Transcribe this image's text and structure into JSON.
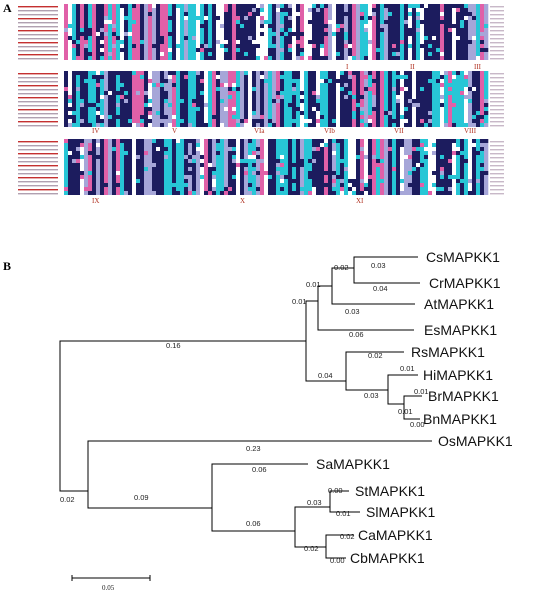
{
  "panels": {
    "a_label": "A",
    "b_label": "B"
  },
  "alignment": {
    "motifs_row1": [
      "I",
      "II",
      "III"
    ],
    "motifs_row2": [
      "IV",
      "V",
      "VIa",
      "VIb",
      "VII",
      "VIII"
    ],
    "motifs_row3": [
      "IX",
      "X",
      "XI"
    ],
    "colors": {
      "navy": "#1c1c5e",
      "cyan": "#27c6d6",
      "pink": "#e060a8",
      "light": "#a6a6d8",
      "white": "#ffffff"
    }
  },
  "tree": {
    "taxa": [
      "CsMAPKK1",
      "CrMAPKK1",
      "AtMAPKK1",
      "EsMAPKK1",
      "RsMAPKK1",
      "HiMAPKK1",
      "BrMAPKK1",
      "BnMAPKK1",
      "OsMAPKK1",
      "SaMAPKK1",
      "StMAPKK1",
      "SlMAPKK1",
      "CaMAPKK1",
      "CbMAPKK1"
    ],
    "branch_lengths": [
      "0.02",
      "0.03",
      "0.04",
      "0.01",
      "0.03",
      "0.06",
      "0.01",
      "0.16",
      "0.02",
      "0.01",
      "0.04",
      "0.01",
      "0.03",
      "0.01",
      "0.00",
      "0.23",
      "0.02",
      "0.06",
      "0.09",
      "0.00",
      "0.03",
      "0.01",
      "0.06",
      "0.02",
      "0.02",
      "0.00"
    ],
    "scale_label": "0.05"
  }
}
